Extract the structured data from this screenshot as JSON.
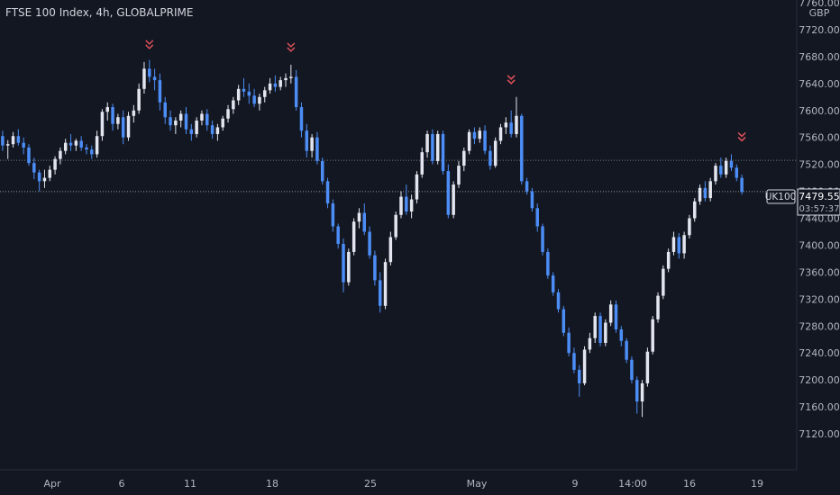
{
  "legend": {
    "title": "FTSE 100 Index, 4h, GLOBALPRIME"
  },
  "price_axis": {
    "currency": "GBP"
  },
  "price_marker": {
    "symbol": "UK100",
    "price": "7479.55",
    "countdown": "03:57:37"
  },
  "colors": {
    "background": "#131722",
    "bull": "#e3e6ee",
    "bear": "#4c8df6",
    "signal": "#e0505a",
    "grid_line": "#787b86"
  },
  "chart_data": {
    "type": "candlestick",
    "title": "FTSE 100 Index, 4h, GLOBALPRIME",
    "ylabel": "GBP",
    "ylim": [
      7100,
      7760
    ],
    "yticks": [
      7120,
      7160,
      7200,
      7240,
      7280,
      7320,
      7360,
      7400,
      7440,
      7480,
      7520,
      7560,
      7600,
      7640,
      7680,
      7720,
      7760
    ],
    "xticks": [
      "Apr",
      "6",
      "11",
      "18",
      "25",
      "May",
      "9",
      "14:00",
      "16",
      "19"
    ],
    "last_price": 7479.55,
    "reference_level": 7526,
    "series": [
      {
        "values": [
          [
            7562,
            7570,
            7540,
            7548
          ],
          [
            7548,
            7556,
            7528,
            7550
          ],
          [
            7550,
            7568,
            7545,
            7562
          ],
          [
            7562,
            7572,
            7548,
            7552
          ],
          [
            7552,
            7560,
            7535,
            7545
          ],
          [
            7545,
            7550,
            7518,
            7522
          ],
          [
            7522,
            7530,
            7498,
            7508
          ],
          [
            7508,
            7512,
            7480,
            7495
          ],
          [
            7495,
            7512,
            7485,
            7500
          ],
          [
            7500,
            7518,
            7495,
            7512
          ],
          [
            7512,
            7532,
            7505,
            7528
          ],
          [
            7528,
            7545,
            7520,
            7540
          ],
          [
            7540,
            7558,
            7535,
            7552
          ],
          [
            7552,
            7565,
            7540,
            7548
          ],
          [
            7548,
            7558,
            7540,
            7555
          ],
          [
            7555,
            7562,
            7540,
            7545
          ],
          [
            7545,
            7550,
            7535,
            7542
          ],
          [
            7542,
            7548,
            7528,
            7535
          ],
          [
            7535,
            7570,
            7530,
            7562
          ],
          [
            7562,
            7602,
            7555,
            7598
          ],
          [
            7598,
            7612,
            7585,
            7605
          ],
          [
            7605,
            7610,
            7570,
            7580
          ],
          [
            7580,
            7595,
            7572,
            7590
          ],
          [
            7590,
            7600,
            7550,
            7560
          ],
          [
            7560,
            7598,
            7555,
            7592
          ],
          [
            7592,
            7608,
            7582,
            7600
          ],
          [
            7600,
            7640,
            7595,
            7632
          ],
          [
            7632,
            7672,
            7625,
            7662
          ],
          [
            7662,
            7675,
            7642,
            7650
          ],
          [
            7650,
            7662,
            7630,
            7645
          ],
          [
            7645,
            7655,
            7600,
            7612
          ],
          [
            7612,
            7620,
            7580,
            7590
          ],
          [
            7590,
            7600,
            7570,
            7578
          ],
          [
            7578,
            7590,
            7565,
            7585
          ],
          [
            7585,
            7600,
            7575,
            7595
          ],
          [
            7595,
            7605,
            7565,
            7572
          ],
          [
            7572,
            7580,
            7555,
            7565
          ],
          [
            7565,
            7590,
            7560,
            7585
          ],
          [
            7585,
            7600,
            7578,
            7595
          ],
          [
            7595,
            7602,
            7570,
            7578
          ],
          [
            7578,
            7585,
            7558,
            7565
          ],
          [
            7565,
            7580,
            7555,
            7575
          ],
          [
            7575,
            7592,
            7570,
            7588
          ],
          [
            7588,
            7608,
            7582,
            7602
          ],
          [
            7602,
            7620,
            7595,
            7615
          ],
          [
            7615,
            7638,
            7608,
            7632
          ],
          [
            7632,
            7648,
            7620,
            7628
          ],
          [
            7628,
            7640,
            7610,
            7622
          ],
          [
            7622,
            7632,
            7605,
            7610
          ],
          [
            7610,
            7625,
            7600,
            7620
          ],
          [
            7620,
            7635,
            7612,
            7630
          ],
          [
            7630,
            7648,
            7625,
            7640
          ],
          [
            7640,
            7652,
            7628,
            7635
          ],
          [
            7635,
            7650,
            7630,
            7645
          ],
          [
            7645,
            7655,
            7635,
            7648
          ],
          [
            7648,
            7668,
            7640,
            7650
          ],
          [
            7650,
            7660,
            7600,
            7605
          ],
          [
            7605,
            7612,
            7560,
            7570
          ],
          [
            7570,
            7580,
            7530,
            7540
          ],
          [
            7540,
            7565,
            7530,
            7560
          ],
          [
            7560,
            7568,
            7520,
            7525
          ],
          [
            7525,
            7530,
            7490,
            7495
          ],
          [
            7495,
            7500,
            7455,
            7462
          ],
          [
            7462,
            7468,
            7420,
            7428
          ],
          [
            7428,
            7432,
            7395,
            7402
          ],
          [
            7402,
            7410,
            7330,
            7345
          ],
          [
            7345,
            7395,
            7340,
            7390
          ],
          [
            7390,
            7440,
            7385,
            7435
          ],
          [
            7435,
            7455,
            7425,
            7448
          ],
          [
            7448,
            7462,
            7415,
            7420
          ],
          [
            7420,
            7428,
            7380,
            7385
          ],
          [
            7385,
            7392,
            7340,
            7348
          ],
          [
            7348,
            7360,
            7300,
            7310
          ],
          [
            7310,
            7380,
            7305,
            7375
          ],
          [
            7375,
            7420,
            7370,
            7412
          ],
          [
            7412,
            7450,
            7408,
            7445
          ],
          [
            7445,
            7480,
            7440,
            7472
          ],
          [
            7472,
            7490,
            7445,
            7450
          ],
          [
            7450,
            7475,
            7440,
            7468
          ],
          [
            7468,
            7510,
            7462,
            7505
          ],
          [
            7505,
            7545,
            7500,
            7538
          ],
          [
            7538,
            7570,
            7530,
            7565
          ],
          [
            7565,
            7572,
            7520,
            7525
          ],
          [
            7525,
            7570,
            7520,
            7565
          ],
          [
            7565,
            7570,
            7505,
            7510
          ],
          [
            7510,
            7520,
            7440,
            7445
          ],
          [
            7445,
            7495,
            7440,
            7490
          ],
          [
            7490,
            7525,
            7485,
            7518
          ],
          [
            7518,
            7545,
            7510,
            7540
          ],
          [
            7540,
            7572,
            7535,
            7568
          ],
          [
            7568,
            7575,
            7550,
            7558
          ],
          [
            7558,
            7575,
            7552,
            7570
          ],
          [
            7570,
            7578,
            7535,
            7540
          ],
          [
            7540,
            7548,
            7512,
            7518
          ],
          [
            7518,
            7560,
            7515,
            7555
          ],
          [
            7555,
            7580,
            7550,
            7575
          ],
          [
            7575,
            7590,
            7565,
            7582
          ],
          [
            7582,
            7600,
            7560,
            7565
          ],
          [
            7565,
            7620,
            7560,
            7592
          ],
          [
            7592,
            7595,
            7490,
            7495
          ],
          [
            7495,
            7500,
            7475,
            7480
          ],
          [
            7480,
            7485,
            7450,
            7455
          ],
          [
            7455,
            7462,
            7420,
            7428
          ],
          [
            7428,
            7432,
            7385,
            7390
          ],
          [
            7390,
            7395,
            7350,
            7355
          ],
          [
            7355,
            7360,
            7325,
            7330
          ],
          [
            7330,
            7335,
            7300,
            7305
          ],
          [
            7305,
            7310,
            7265,
            7270
          ],
          [
            7270,
            7278,
            7235,
            7240
          ],
          [
            7240,
            7248,
            7210,
            7215
          ],
          [
            7215,
            7222,
            7175,
            7195
          ],
          [
            7195,
            7250,
            7192,
            7245
          ],
          [
            7245,
            7270,
            7240,
            7262
          ],
          [
            7262,
            7300,
            7255,
            7295
          ],
          [
            7295,
            7300,
            7250,
            7255
          ],
          [
            7255,
            7290,
            7250,
            7285
          ],
          [
            7285,
            7318,
            7280,
            7312
          ],
          [
            7312,
            7318,
            7270,
            7275
          ],
          [
            7275,
            7280,
            7250,
            7258
          ],
          [
            7258,
            7262,
            7225,
            7230
          ],
          [
            7230,
            7235,
            7195,
            7200
          ],
          [
            7200,
            7205,
            7150,
            7168
          ],
          [
            7168,
            7200,
            7145,
            7195
          ],
          [
            7195,
            7248,
            7190,
            7242
          ],
          [
            7242,
            7295,
            7238,
            7290
          ],
          [
            7290,
            7330,
            7285,
            7325
          ],
          [
            7325,
            7370,
            7320,
            7365
          ],
          [
            7365,
            7395,
            7360,
            7390
          ],
          [
            7390,
            7420,
            7385,
            7412
          ],
          [
            7412,
            7418,
            7380,
            7388
          ],
          [
            7388,
            7420,
            7380,
            7415
          ],
          [
            7415,
            7445,
            7410,
            7440
          ],
          [
            7440,
            7470,
            7435,
            7465
          ],
          [
            7465,
            7490,
            7460,
            7485
          ],
          [
            7485,
            7495,
            7465,
            7470
          ],
          [
            7470,
            7500,
            7465,
            7495
          ],
          [
            7495,
            7522,
            7490,
            7518
          ],
          [
            7518,
            7530,
            7500,
            7505
          ],
          [
            7505,
            7530,
            7500,
            7525
          ],
          [
            7525,
            7535,
            7510,
            7515
          ],
          [
            7515,
            7520,
            7495,
            7500
          ],
          [
            7500,
            7505,
            7475,
            7479
          ]
        ]
      }
    ],
    "signals": [
      {
        "index": 28,
        "price": 7672
      },
      {
        "index": 55,
        "price": 7668
      },
      {
        "index": 97,
        "price": 7620
      },
      {
        "index": 141,
        "price": 7535
      }
    ]
  }
}
